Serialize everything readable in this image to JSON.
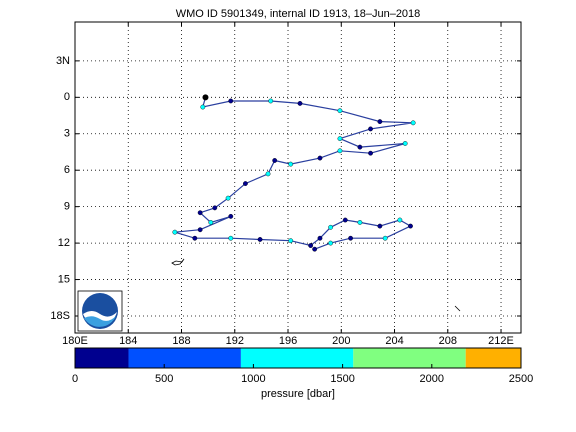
{
  "chart_data": {
    "type": "map",
    "title": "WMO ID 5901349, internal ID 1913, 18–Jun–2018",
    "xlim": [
      180,
      213.5
    ],
    "ylim": [
      -19.4,
      6.2
    ],
    "xticks": [
      {
        "value": 180,
        "label": "180E"
      },
      184,
      188,
      192,
      196,
      200,
      204,
      208,
      {
        "value": 212,
        "label": "212E"
      }
    ],
    "yticks": [
      {
        "value": 3,
        "label": "3N"
      },
      0,
      {
        "value": -3,
        "label": "3"
      },
      {
        "value": -6,
        "label": "6"
      },
      {
        "value": -9,
        "label": "9"
      },
      {
        "value": -12,
        "label": "12"
      },
      {
        "value": -15,
        "label": "15"
      },
      {
        "value": -18,
        "label": "18S"
      }
    ],
    "grid": true,
    "track": {
      "color": "#2a3f9f",
      "lon": [
        189.8,
        189.6,
        191.7,
        194.7,
        196.9,
        199.9,
        202.9,
        205.4,
        202.2,
        199.9,
        201.4,
        204.8,
        202.2,
        199.9,
        198.4,
        196.2,
        195.0,
        194.5,
        192.8,
        191.5,
        190.5,
        189.4,
        190.2,
        191.7,
        189.4,
        187.5,
        189.0,
        191.7,
        193.9,
        196.2,
        197.7,
        198.4,
        199.2,
        200.3,
        201.4,
        202.9,
        204.4,
        205.2,
        203.3,
        200.7,
        199.2,
        198.0
      ],
      "lat": [
        0.0,
        -0.8,
        -0.3,
        -0.3,
        -0.5,
        -1.1,
        -2.0,
        -2.1,
        -2.6,
        -3.4,
        -4.1,
        -3.8,
        -4.6,
        -4.4,
        -5.0,
        -5.5,
        -5.2,
        -6.3,
        -7.1,
        -8.3,
        -9.1,
        -9.5,
        -10.3,
        -9.8,
        -10.9,
        -11.1,
        -11.6,
        -11.6,
        -11.7,
        -11.8,
        -12.2,
        -11.6,
        -10.7,
        -10.1,
        -10.3,
        -10.6,
        -10.1,
        -10.6,
        -11.6,
        -11.6,
        -12.0,
        -12.5
      ],
      "pressure": [
        50,
        1000,
        50,
        1000,
        50,
        1000,
        50,
        1000,
        50,
        1000,
        50,
        1000,
        50,
        1000,
        50,
        1000,
        50,
        1000,
        50,
        1000,
        50,
        50,
        1000,
        50,
        50,
        1000,
        50,
        1000,
        50,
        1000,
        50,
        50,
        1000,
        50,
        1000,
        50,
        1000,
        50,
        1000,
        50,
        1000,
        50
      ]
    },
    "colorbar": {
      "label": "pressure [dbar]",
      "bounds": [
        0,
        300,
        930,
        1560,
        2190,
        2500
      ],
      "colors": [
        "#00008f",
        "#0050ff",
        "#00ffff",
        "#80ff80",
        "#ffb000"
      ],
      "lim": [
        0,
        2500
      ],
      "ticks": [
        0,
        500,
        1000,
        1500,
        2000,
        2500
      ]
    }
  }
}
